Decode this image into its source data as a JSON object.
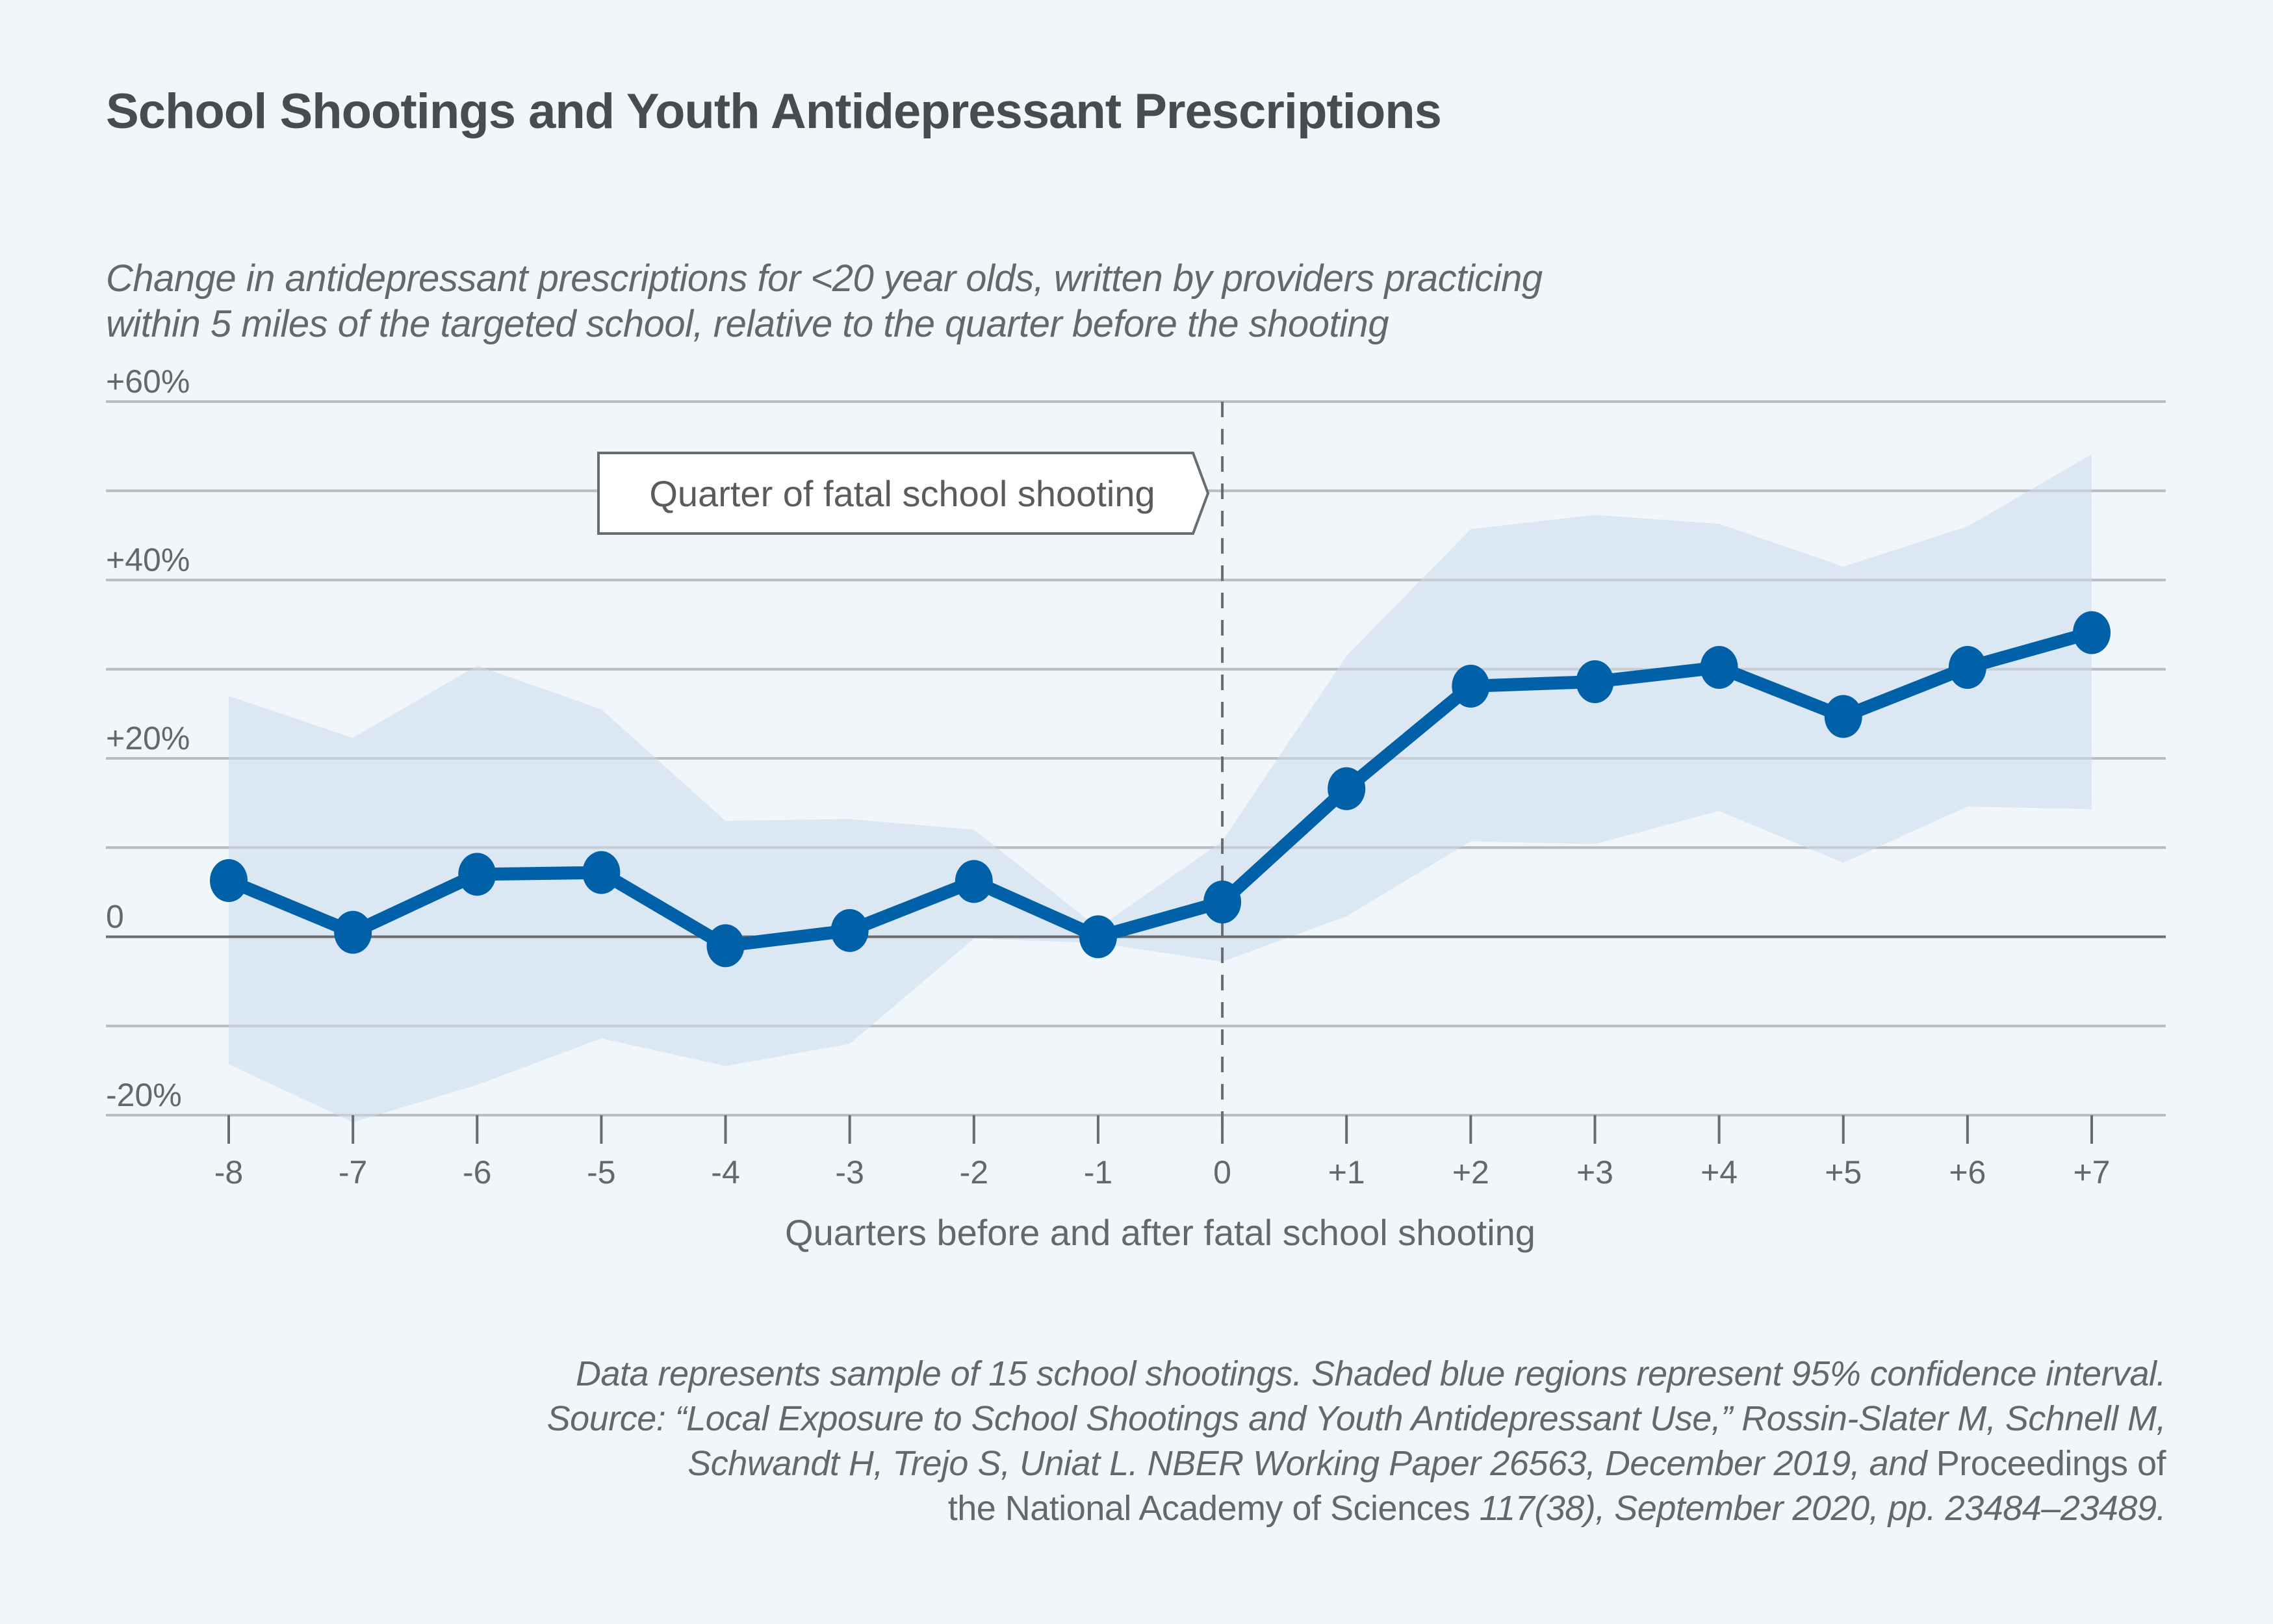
{
  "title": "School Shootings and Youth Antidepressant Prescriptions",
  "subtitle": [
    "Change in antidepressant prescriptions for <20 year olds, written by providers practicing",
    "within 5 miles of the targeted school, relative to the quarter before the shooting"
  ],
  "footer": {
    "line1": "Data represents sample of 15 school shootings. Shaded blue regions represent 95% confidence interval.",
    "line2": "Source: “Local Exposure to School Shootings and Youth Antidepressant Use,” Rossin-Slater M, Schnell M,",
    "line3_italic": "Schwandt H, Trejo S, Uniat L. NBER Working Paper 26563, December 2019, and ",
    "line3_normal": "Proceedings of",
    "line4_normal": "the National Academy of Sciences ",
    "line4_italic": "117(38), September 2020, pp. 23484–23489."
  },
  "colors": {
    "background": "#f1f6fa",
    "line": "#0061a8",
    "ci_band": "#d9e7f2",
    "gridline": "#b9bcc0",
    "zero_line": "#6b6c6f",
    "text": "#4a4b4e"
  },
  "chart_data": {
    "type": "line",
    "title": "School Shootings and Youth Antidepressant Prescriptions",
    "xlabel": "Quarters before and after fatal school shooting",
    "ylabel": "",
    "x": [
      -8,
      -7,
      -6,
      -5,
      -4,
      -3,
      -2,
      -1,
      0,
      1,
      2,
      3,
      4,
      5,
      6,
      7
    ],
    "x_tick_labels": [
      "-8",
      "-7",
      "-6",
      "-5",
      "-4",
      "-3",
      "-2",
      "-1",
      "0",
      "+1",
      "+2",
      "+3",
      "+4",
      "+5",
      "+6",
      "+7"
    ],
    "series": [
      {
        "name": "Change in antidepressant prescriptions (%)",
        "values": [
          6.3,
          0.5,
          7.0,
          7.2,
          -1.0,
          0.7,
          6.2,
          0.0,
          3.9,
          16.6,
          28.1,
          28.6,
          30.2,
          24.7,
          30.2,
          34.1
        ]
      }
    ],
    "confidence_interval": {
      "name": "95% confidence interval",
      "upper": [
        27.0,
        22.3,
        30.4,
        25.5,
        13.0,
        13.2,
        12.0,
        1.0,
        10.7,
        31.5,
        45.7,
        47.3,
        46.3,
        41.5,
        46.0,
        54.1
      ],
      "lower": [
        -14.3,
        -20.8,
        -16.6,
        -11.4,
        -14.5,
        -12.0,
        -0.2,
        -0.7,
        -2.8,
        2.3,
        10.7,
        10.4,
        14.1,
        8.3,
        14.6,
        14.3
      ]
    },
    "y_ticks": [
      60,
      50,
      40,
      30,
      20,
      10,
      0,
      -10,
      -20
    ],
    "y_tick_labels": {
      "60": "+60%",
      "40": "+40%",
      "20": "+20%",
      "0": "0",
      "-20": "-20%"
    },
    "ylim": [
      -20,
      60
    ],
    "grid": true,
    "annotation": {
      "text": "Quarter of fatal school shooting",
      "x": 0,
      "style": "dashed vertical line"
    }
  }
}
